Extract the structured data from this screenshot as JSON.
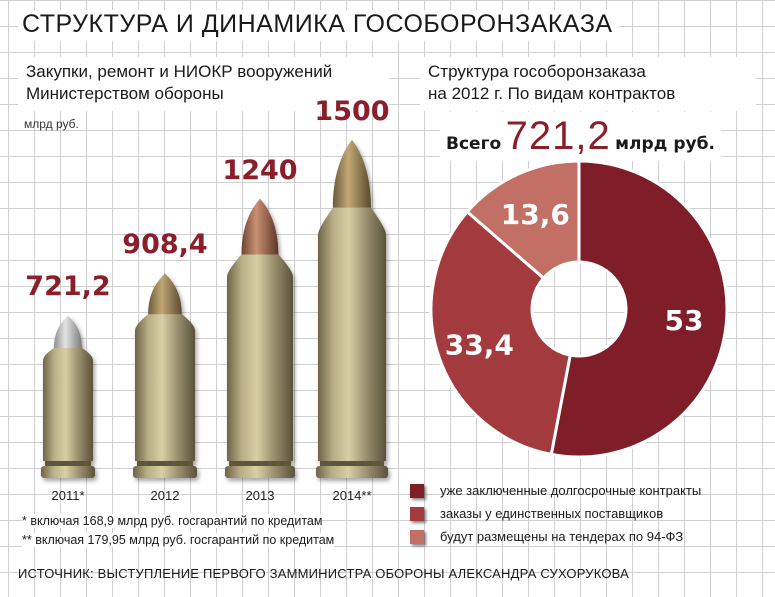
{
  "header": {
    "title": "СТРУКТУРА И ДИНАМИКА ГОСОБОРОНЗАКАЗА",
    "left_subtitle_line1": "Закупки, ремонт и НИОКР вооружений",
    "left_subtitle_line2": "Министерством  обороны",
    "right_subtitle_line1": "Структура гособоронзаказа",
    "right_subtitle_line2": "на 2012 г. По видам контрактов"
  },
  "unit_label": "млрд руб.",
  "total": {
    "prefix": "Всего",
    "value": "721,2",
    "suffix": "млрд руб."
  },
  "notes": [
    "*   включая 168,9 млрд руб. госгарантий по кредитам",
    "**  включая 179,95 млрд руб. госгарантий по кредитам"
  ],
  "source": "ИСТОЧНИК: ВЫСТУПЛЕНИЕ ПЕРВОГО ЗАММИНИСТРА ОБОРОНЫ АЛЕКСАНДРА СУХОРУКОВА",
  "colors": {
    "dark": "#7f1d28",
    "mid": "#a23a3e",
    "light": "#c27066",
    "accent_text": "#8a1e2a"
  },
  "chart_data": [
    {
      "type": "bar",
      "categories": [
        "2011*",
        "2012",
        "2013",
        "2014**"
      ],
      "values": [
        721.2,
        908.4,
        1240,
        1500
      ],
      "value_labels": [
        "721,2",
        "908,4",
        "1240",
        "1500"
      ]
    },
    {
      "type": "pie",
      "labels": [
        "уже заключенные долгосрочные контракты",
        "заказы у единственных поставщиков",
        "будут размещены на тендерах по 94-ФЗ"
      ],
      "values": [
        53,
        33.4,
        13.6
      ],
      "value_labels": [
        "53",
        "33,4",
        "13,6"
      ]
    }
  ]
}
